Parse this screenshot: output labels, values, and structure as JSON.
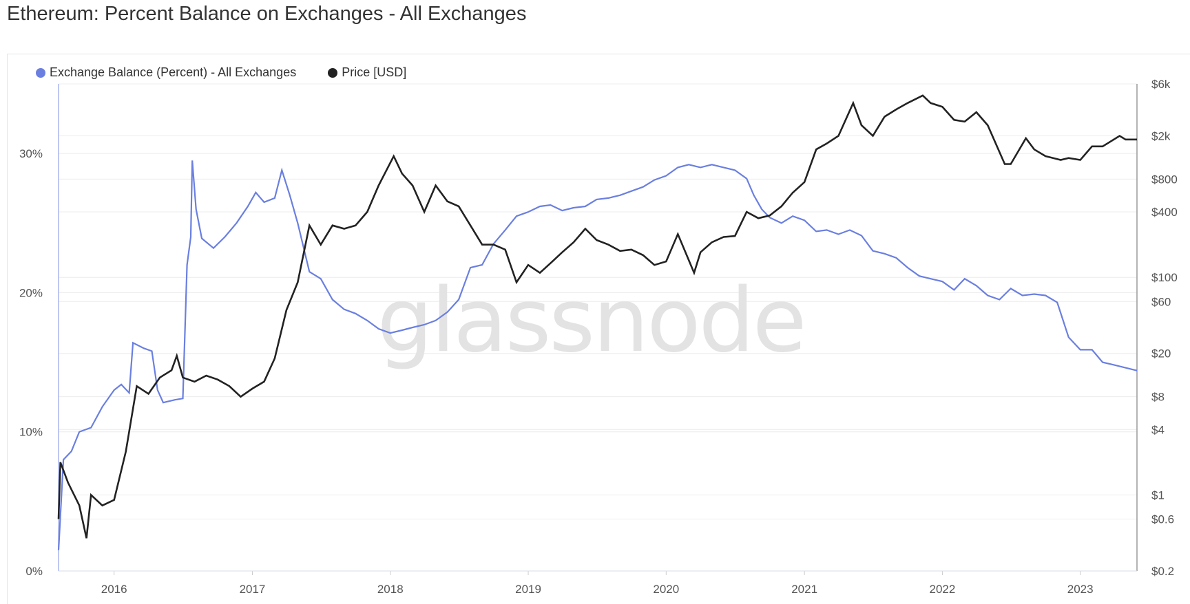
{
  "header": {
    "title": "Ethereum: Percent Balance on Exchanges - All Exchanges"
  },
  "watermark": "glassnode",
  "colors": {
    "balance": "#6a7fe0",
    "price": "#222222",
    "grid": "#ececec"
  },
  "chart_data": {
    "type": "line",
    "title": "Ethereum: Percent Balance on Exchanges - All Exchanges",
    "legend_position": "top-left",
    "grid": true,
    "x_range": [
      "2015-08-07",
      "2023-05-31"
    ],
    "x_ticks": [
      "2016",
      "2017",
      "2018",
      "2019",
      "2020",
      "2021",
      "2022",
      "2023"
    ],
    "y_left": {
      "ticks": [
        "0%",
        "10%",
        "20%",
        "30%"
      ],
      "range": [
        0,
        35
      ]
    },
    "y_right": {
      "scale": "log",
      "ticks": [
        "$6k",
        "$2k",
        "$800",
        "$400",
        "$100",
        "$60",
        "$20",
        "$8",
        "$4",
        "$1",
        "$0.6",
        "$0.2"
      ],
      "range": [
        0.2,
        6000
      ]
    },
    "series": [
      {
        "name": "Exchange Balance (Percent) - All Exchanges",
        "axis": "left",
        "points": [
          [
            "2015-08-07",
            1.5
          ],
          [
            "2015-08-20",
            8.0
          ],
          [
            "2015-09-10",
            8.6
          ],
          [
            "2015-10-01",
            10.0
          ],
          [
            "2015-11-01",
            10.3
          ],
          [
            "2015-12-01",
            11.8
          ],
          [
            "2016-01-01",
            13.0
          ],
          [
            "2016-01-20",
            13.4
          ],
          [
            "2016-02-10",
            12.8
          ],
          [
            "2016-02-20",
            16.4
          ],
          [
            "2016-03-20",
            16.0
          ],
          [
            "2016-04-10",
            15.8
          ],
          [
            "2016-04-25",
            13.0
          ],
          [
            "2016-05-10",
            12.1
          ],
          [
            "2016-06-10",
            12.3
          ],
          [
            "2016-07-01",
            12.4
          ],
          [
            "2016-07-12",
            22.0
          ],
          [
            "2016-07-22",
            24.0
          ],
          [
            "2016-07-26",
            29.5
          ],
          [
            "2016-08-05",
            26.0
          ],
          [
            "2016-08-20",
            23.9
          ],
          [
            "2016-09-20",
            23.2
          ],
          [
            "2016-10-20",
            24.0
          ],
          [
            "2016-11-20",
            25.0
          ],
          [
            "2016-12-20",
            26.2
          ],
          [
            "2017-01-10",
            27.2
          ],
          [
            "2017-02-01",
            26.5
          ],
          [
            "2017-03-01",
            26.8
          ],
          [
            "2017-03-20",
            28.8
          ],
          [
            "2017-04-10",
            27.0
          ],
          [
            "2017-05-01",
            25.0
          ],
          [
            "2017-06-01",
            21.5
          ],
          [
            "2017-07-01",
            21.0
          ],
          [
            "2017-08-01",
            19.5
          ],
          [
            "2017-09-01",
            18.8
          ],
          [
            "2017-10-01",
            18.5
          ],
          [
            "2017-11-01",
            18.0
          ],
          [
            "2017-12-01",
            17.4
          ],
          [
            "2018-01-01",
            17.1
          ],
          [
            "2018-02-01",
            17.3
          ],
          [
            "2018-03-01",
            17.5
          ],
          [
            "2018-04-01",
            17.7
          ],
          [
            "2018-05-01",
            18.0
          ],
          [
            "2018-06-01",
            18.6
          ],
          [
            "2018-07-01",
            19.5
          ],
          [
            "2018-08-01",
            21.8
          ],
          [
            "2018-09-01",
            22.0
          ],
          [
            "2018-10-01",
            23.5
          ],
          [
            "2018-11-01",
            24.5
          ],
          [
            "2018-12-01",
            25.5
          ],
          [
            "2019-01-01",
            25.8
          ],
          [
            "2019-02-01",
            26.2
          ],
          [
            "2019-03-01",
            26.3
          ],
          [
            "2019-04-01",
            25.9
          ],
          [
            "2019-05-01",
            26.1
          ],
          [
            "2019-06-01",
            26.2
          ],
          [
            "2019-07-01",
            26.7
          ],
          [
            "2019-08-01",
            26.8
          ],
          [
            "2019-09-01",
            27.0
          ],
          [
            "2019-10-01",
            27.3
          ],
          [
            "2019-11-01",
            27.6
          ],
          [
            "2019-12-01",
            28.1
          ],
          [
            "2020-01-01",
            28.4
          ],
          [
            "2020-02-01",
            29.0
          ],
          [
            "2020-03-01",
            29.2
          ],
          [
            "2020-04-01",
            29.0
          ],
          [
            "2020-05-01",
            29.2
          ],
          [
            "2020-06-01",
            29.0
          ],
          [
            "2020-07-01",
            28.8
          ],
          [
            "2020-08-01",
            28.2
          ],
          [
            "2020-08-20",
            27.0
          ],
          [
            "2020-09-10",
            26.0
          ],
          [
            "2020-10-01",
            25.4
          ],
          [
            "2020-11-01",
            25.0
          ],
          [
            "2020-12-01",
            25.5
          ],
          [
            "2021-01-01",
            25.2
          ],
          [
            "2021-02-01",
            24.4
          ],
          [
            "2021-03-01",
            24.5
          ],
          [
            "2021-04-01",
            24.2
          ],
          [
            "2021-05-01",
            24.5
          ],
          [
            "2021-06-01",
            24.1
          ],
          [
            "2021-07-01",
            23.0
          ],
          [
            "2021-08-01",
            22.8
          ],
          [
            "2021-09-01",
            22.5
          ],
          [
            "2021-10-01",
            21.8
          ],
          [
            "2021-11-01",
            21.2
          ],
          [
            "2021-12-01",
            21.0
          ],
          [
            "2022-01-01",
            20.8
          ],
          [
            "2022-02-01",
            20.2
          ],
          [
            "2022-03-01",
            21.0
          ],
          [
            "2022-04-01",
            20.5
          ],
          [
            "2022-05-01",
            19.8
          ],
          [
            "2022-06-01",
            19.5
          ],
          [
            "2022-07-01",
            20.3
          ],
          [
            "2022-08-01",
            19.8
          ],
          [
            "2022-09-01",
            19.9
          ],
          [
            "2022-10-01",
            19.8
          ],
          [
            "2022-11-01",
            19.3
          ],
          [
            "2022-12-01",
            16.8
          ],
          [
            "2023-01-01",
            15.9
          ],
          [
            "2023-02-01",
            15.9
          ],
          [
            "2023-03-01",
            15.0
          ],
          [
            "2023-04-01",
            14.8
          ],
          [
            "2023-05-31",
            14.4
          ]
        ]
      },
      {
        "name": "Price [USD]",
        "axis": "right",
        "points": [
          [
            "2015-08-07",
            0.6
          ],
          [
            "2015-08-12",
            2.0
          ],
          [
            "2015-09-01",
            1.3
          ],
          [
            "2015-10-01",
            0.8
          ],
          [
            "2015-10-20",
            0.4
          ],
          [
            "2015-11-01",
            1.0
          ],
          [
            "2015-12-01",
            0.8
          ],
          [
            "2016-01-01",
            0.9
          ],
          [
            "2016-02-01",
            2.5
          ],
          [
            "2016-03-01",
            10.0
          ],
          [
            "2016-04-01",
            8.5
          ],
          [
            "2016-05-01",
            12.0
          ],
          [
            "2016-06-01",
            14.0
          ],
          [
            "2016-06-15",
            19.0
          ],
          [
            "2016-07-01",
            12.0
          ],
          [
            "2016-08-01",
            11.0
          ],
          [
            "2016-09-01",
            12.5
          ],
          [
            "2016-10-01",
            11.5
          ],
          [
            "2016-11-01",
            10.0
          ],
          [
            "2016-12-01",
            8.0
          ],
          [
            "2017-01-01",
            9.5
          ],
          [
            "2017-02-01",
            11.0
          ],
          [
            "2017-03-01",
            18.0
          ],
          [
            "2017-04-01",
            50.0
          ],
          [
            "2017-05-01",
            90.0
          ],
          [
            "2017-06-01",
            300.0
          ],
          [
            "2017-07-01",
            200.0
          ],
          [
            "2017-08-01",
            300.0
          ],
          [
            "2017-09-01",
            280.0
          ],
          [
            "2017-10-01",
            300.0
          ],
          [
            "2017-11-01",
            400.0
          ],
          [
            "2017-12-01",
            700.0
          ],
          [
            "2018-01-10",
            1300.0
          ],
          [
            "2018-02-01",
            900.0
          ],
          [
            "2018-03-01",
            700.0
          ],
          [
            "2018-04-01",
            400.0
          ],
          [
            "2018-05-01",
            700.0
          ],
          [
            "2018-06-01",
            500.0
          ],
          [
            "2018-07-01",
            450.0
          ],
          [
            "2018-08-01",
            300.0
          ],
          [
            "2018-09-01",
            200.0
          ],
          [
            "2018-10-01",
            200.0
          ],
          [
            "2018-11-01",
            180.0
          ],
          [
            "2018-12-01",
            90.0
          ],
          [
            "2019-01-01",
            130.0
          ],
          [
            "2019-02-01",
            110.0
          ],
          [
            "2019-03-01",
            135.0
          ],
          [
            "2019-04-01",
            170.0
          ],
          [
            "2019-05-01",
            210.0
          ],
          [
            "2019-06-01",
            280.0
          ],
          [
            "2019-07-01",
            220.0
          ],
          [
            "2019-08-01",
            200.0
          ],
          [
            "2019-09-01",
            175.0
          ],
          [
            "2019-10-01",
            180.0
          ],
          [
            "2019-11-01",
            160.0
          ],
          [
            "2019-12-01",
            130.0
          ],
          [
            "2020-01-01",
            140.0
          ],
          [
            "2020-02-01",
            250.0
          ],
          [
            "2020-03-15",
            110.0
          ],
          [
            "2020-04-01",
            170.0
          ],
          [
            "2020-05-01",
            210.0
          ],
          [
            "2020-06-01",
            235.0
          ],
          [
            "2020-07-01",
            240.0
          ],
          [
            "2020-08-01",
            400.0
          ],
          [
            "2020-09-01",
            350.0
          ],
          [
            "2020-10-01",
            370.0
          ],
          [
            "2020-11-01",
            450.0
          ],
          [
            "2020-12-01",
            600.0
          ],
          [
            "2021-01-01",
            750.0
          ],
          [
            "2021-02-01",
            1500.0
          ],
          [
            "2021-03-01",
            1700.0
          ],
          [
            "2021-04-01",
            2000.0
          ],
          [
            "2021-05-10",
            4000.0
          ],
          [
            "2021-06-01",
            2500.0
          ],
          [
            "2021-07-01",
            2000.0
          ],
          [
            "2021-08-01",
            3000.0
          ],
          [
            "2021-09-01",
            3500.0
          ],
          [
            "2021-10-01",
            4000.0
          ],
          [
            "2021-11-10",
            4700.0
          ],
          [
            "2021-12-01",
            4000.0
          ],
          [
            "2022-01-01",
            3700.0
          ],
          [
            "2022-02-01",
            2800.0
          ],
          [
            "2022-03-01",
            2700.0
          ],
          [
            "2022-04-01",
            3300.0
          ],
          [
            "2022-05-01",
            2500.0
          ],
          [
            "2022-06-15",
            1100.0
          ],
          [
            "2022-07-01",
            1100.0
          ],
          [
            "2022-08-10",
            1900.0
          ],
          [
            "2022-09-01",
            1500.0
          ],
          [
            "2022-10-01",
            1300.0
          ],
          [
            "2022-11-10",
            1200.0
          ],
          [
            "2022-12-01",
            1250.0
          ],
          [
            "2023-01-01",
            1200.0
          ],
          [
            "2023-02-01",
            1600.0
          ],
          [
            "2023-03-01",
            1600.0
          ],
          [
            "2023-04-15",
            2000.0
          ],
          [
            "2023-05-01",
            1850.0
          ],
          [
            "2023-05-31",
            1850.0
          ]
        ]
      }
    ]
  }
}
